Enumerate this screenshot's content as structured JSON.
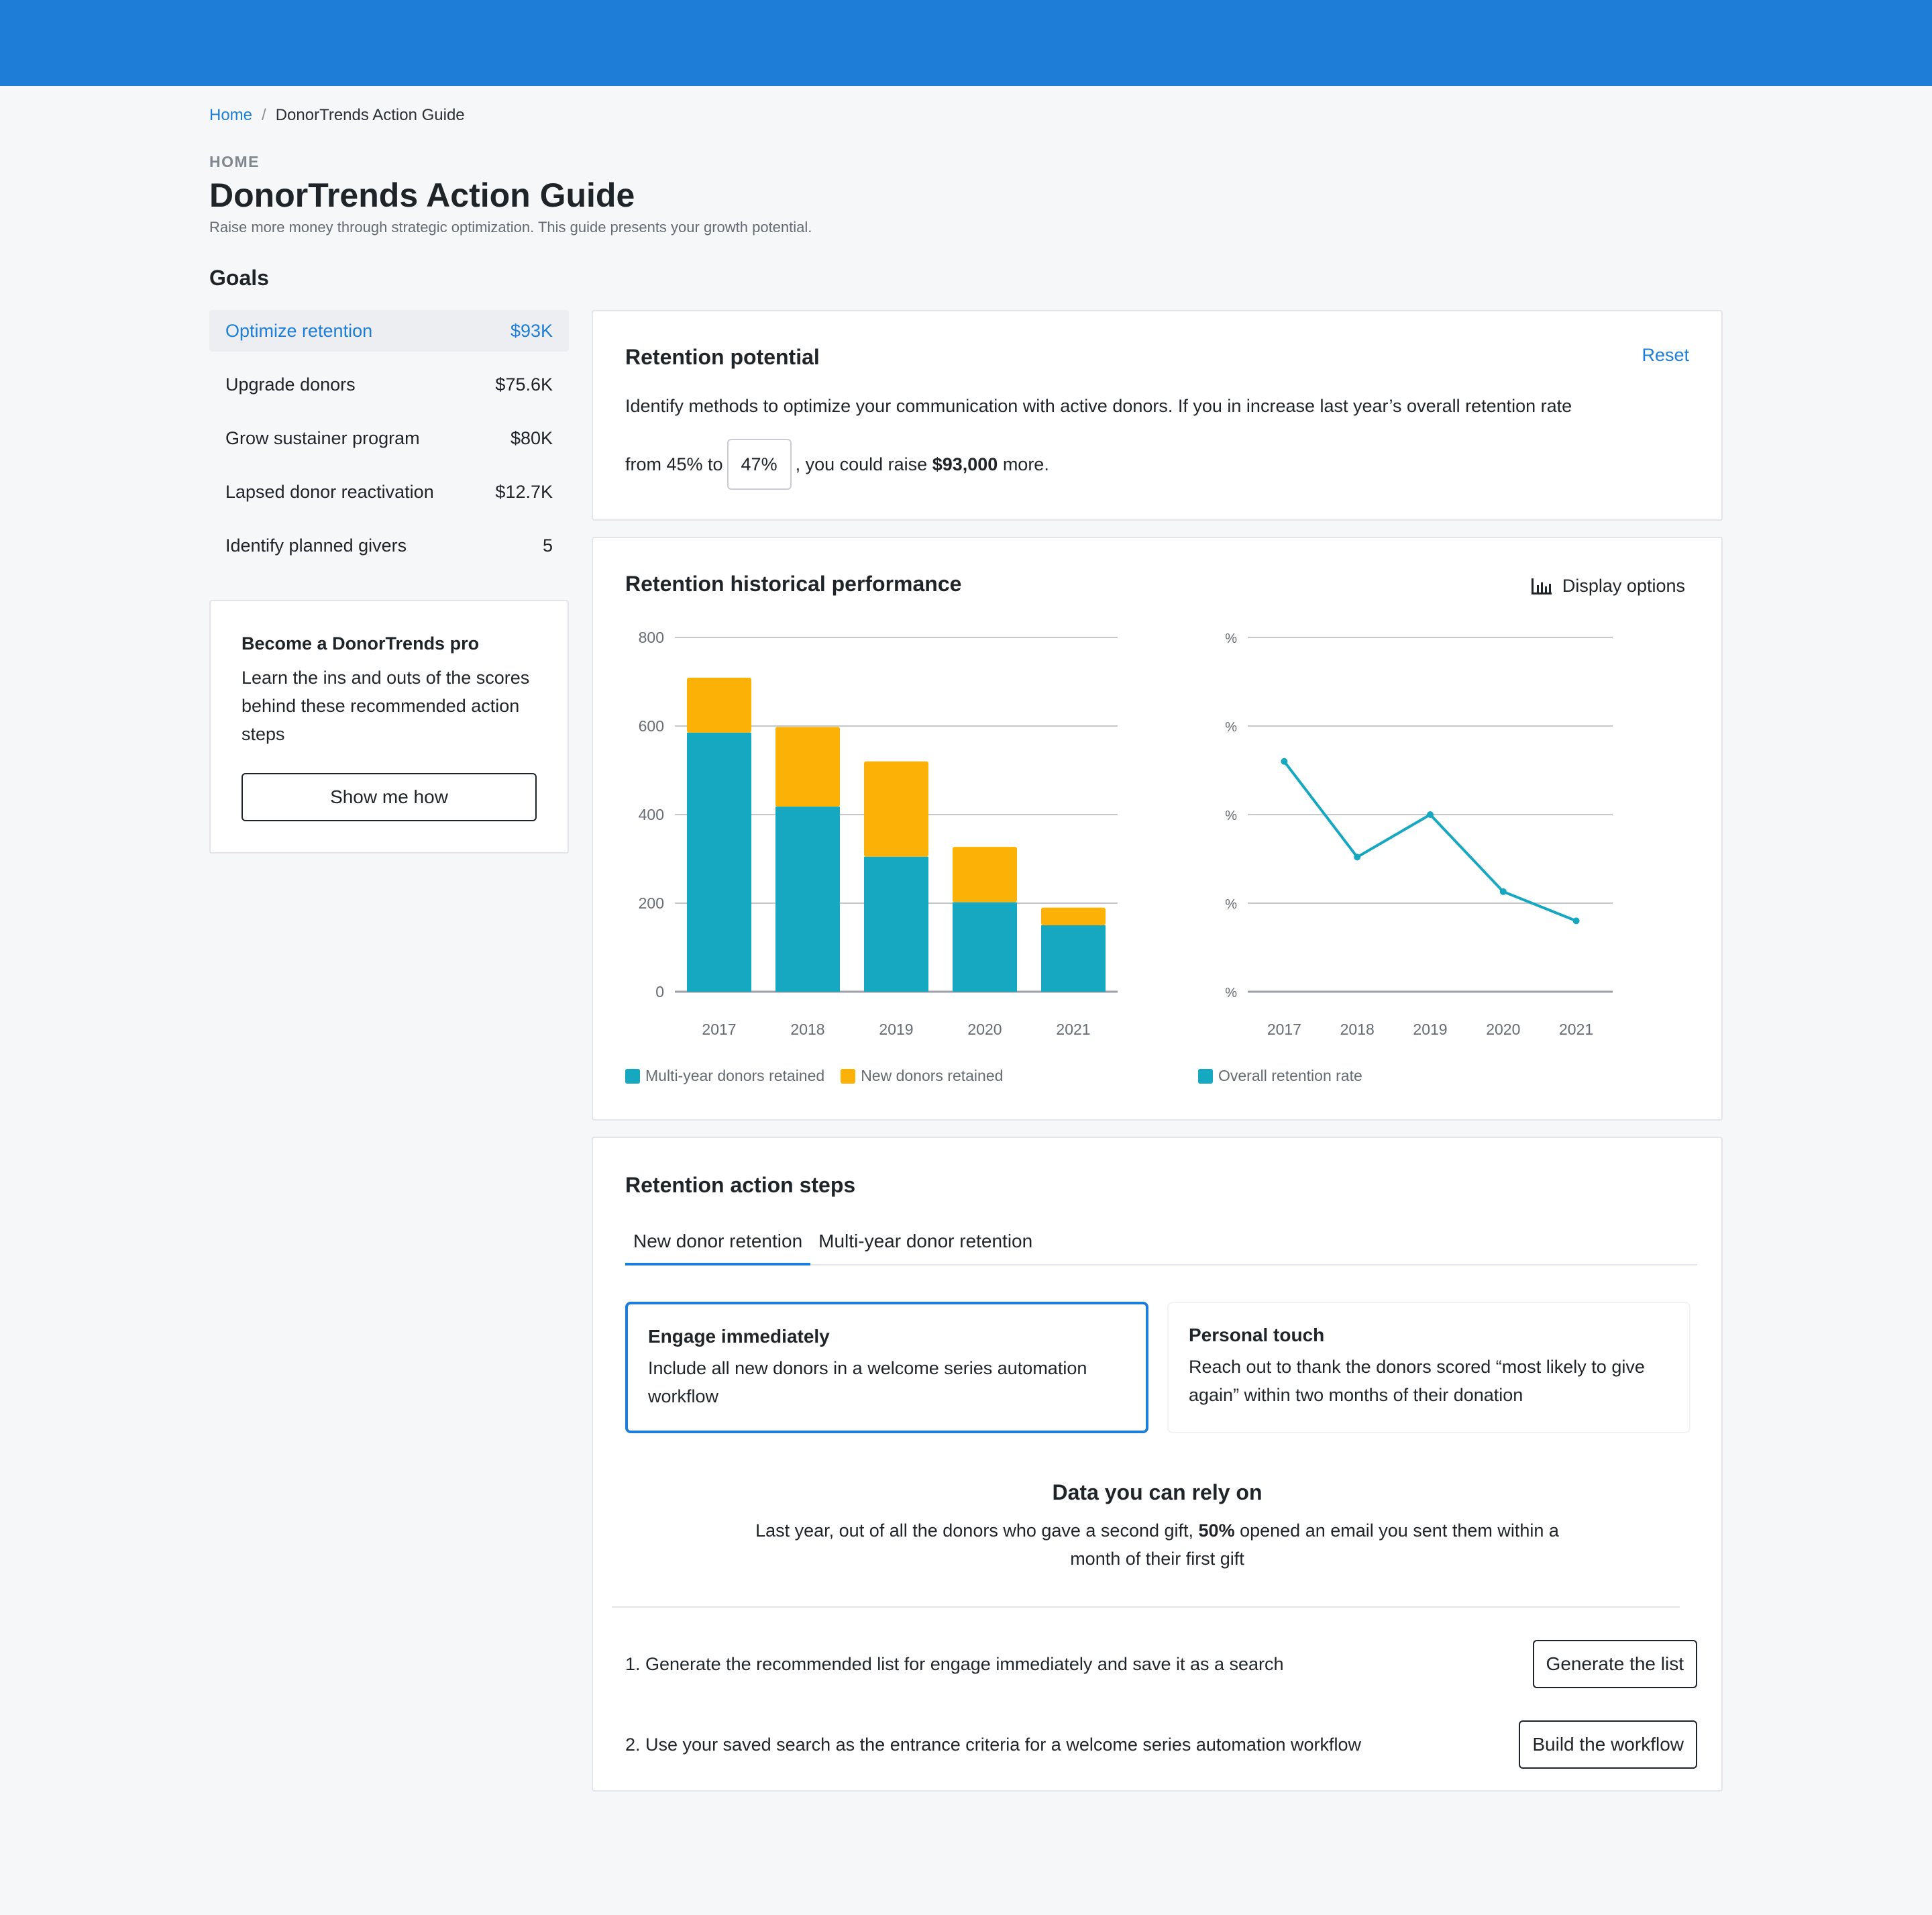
{
  "breadcrumb": {
    "home": "Home",
    "separator": "/",
    "current": "DonorTrends Action Guide"
  },
  "header": {
    "eyebrow": "HOME",
    "title": "DonorTrends Action Guide",
    "subtitle": "Raise more money through strategic optimization. This guide presents your growth potential."
  },
  "goals": {
    "heading": "Goals",
    "items": [
      {
        "label": "Optimize retention",
        "value": "$93K",
        "active": true
      },
      {
        "label": "Upgrade donors",
        "value": "$75.6K"
      },
      {
        "label": "Grow sustainer program",
        "value": "$80K"
      },
      {
        "label": "Lapsed donor reactivation",
        "value": "$12.7K"
      },
      {
        "label": "Identify planned givers",
        "value": "5"
      }
    ]
  },
  "promo": {
    "title": "Become a DonorTrends pro",
    "body": "Learn the ins and outs of the scores behind these recommended action steps",
    "button": "Show me how"
  },
  "potential": {
    "title": "Retention potential",
    "reset": "Reset",
    "line1": "Identify methods to optimize your communication with active donors. If you in increase last year’s overall retention rate",
    "from_text": "from 45% to",
    "input_value": "47%",
    "raise_text": ", you could raise",
    "raise_amount": "$93,000",
    "more_text": "more."
  },
  "history": {
    "title": "Retention historical performance",
    "display_options": "Display options",
    "icon": "bar-chart-icon"
  },
  "chart_data": [
    {
      "type": "bar",
      "stacked": true,
      "categories": [
        "2017",
        "2018",
        "2019",
        "2020",
        "2021"
      ],
      "series": [
        {
          "name": "Multi-year donors retained",
          "color": "#17a8c1",
          "values": [
            585,
            418,
            305,
            202,
            150
          ]
        },
        {
          "name": "New donors retained",
          "color": "#fbb106",
          "values": [
            124,
            180,
            215,
            125,
            40
          ]
        }
      ],
      "yticks": [
        "0",
        "200",
        "400",
        "600",
        "800"
      ],
      "ylim": [
        0,
        800
      ],
      "grid": true,
      "legend": "bottom-left"
    },
    {
      "type": "line",
      "categories": [
        "2017",
        "2018",
        "2019",
        "2020",
        "2021"
      ],
      "series": [
        {
          "name": "Overall retention rate",
          "color": "#17a8c1",
          "values": [
            2.6,
            1.52,
            2.0,
            1.13,
            0.8
          ]
        }
      ],
      "yticks": [
        "%",
        "%",
        "%",
        "%",
        "%"
      ],
      "ylim": [
        0,
        4
      ],
      "grid": true,
      "legend": "bottom-left"
    }
  ],
  "actions": {
    "title": "Retention action steps",
    "tabs": [
      "New donor retention",
      "Multi-year donor retention"
    ],
    "cards": [
      {
        "title": "Engage immediately",
        "body": "Include all new donors in a welcome series automation workflow"
      },
      {
        "title": "Personal touch",
        "body": "Reach out to thank the donors scored “most likely to give again” within two months of their donation"
      }
    ],
    "rely_title": "Data you can rely on",
    "rely_pre": "Last year, out of all the donors who gave a second gift,",
    "rely_pct": "50%",
    "rely_post": "opened an email you sent them within a month of their first gift",
    "steps": [
      {
        "text": "1. Generate the recommended list for engage immediately and save it as a search",
        "button": "Generate the list"
      },
      {
        "text": "2. Use your saved search as the entrance criteria for a welcome series automation workflow",
        "button": "Build the workflow"
      }
    ]
  }
}
